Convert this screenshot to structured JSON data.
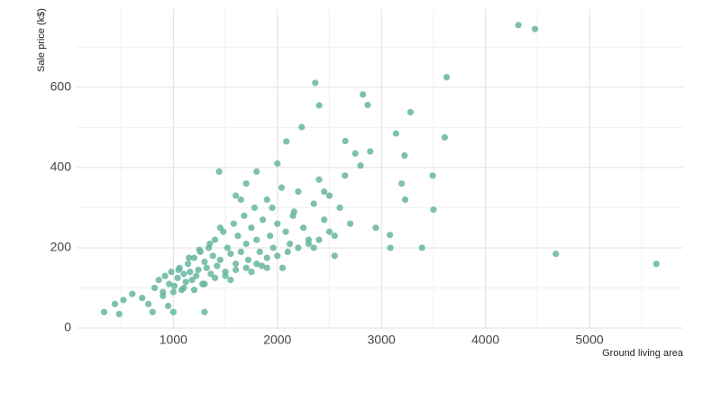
{
  "chart_data": {
    "type": "scatter",
    "xlabel": "Ground living area",
    "ylabel": "Sale price (k$)",
    "color": "#66b5a0",
    "xlim": [
      70,
      5900
    ],
    "ylim": [
      0,
      795
    ],
    "xticks": [
      1000,
      2000,
      3000,
      4000,
      5000
    ],
    "yticks": [
      0,
      200,
      400,
      600
    ],
    "xminor": [
      500,
      1500,
      2500,
      3500,
      4500,
      5500
    ],
    "yminor": [
      100,
      300,
      500,
      700
    ],
    "grid": true,
    "x": [
      4316,
      4476,
      4676,
      5642,
      3627,
      2364,
      2822,
      2402,
      2868,
      3279,
      2234,
      3140,
      3608,
      2653,
      2086,
      3222,
      3493,
      3194,
      3228,
      3500,
      3086,
      3390,
      3082,
      2946,
      2799,
      2892,
      2749,
      1440,
      334,
      480,
      438,
      520,
      605,
      700,
      760,
      800,
      1000,
      950,
      1300,
      820,
      860,
      900,
      920,
      960,
      980,
      1010,
      1040,
      1060,
      1080,
      1100,
      1120,
      1140,
      1160,
      1180,
      1200,
      1220,
      1240,
      1260,
      1280,
      1300,
      1320,
      1340,
      1360,
      1380,
      1400,
      1420,
      1450,
      1480,
      1500,
      1520,
      1550,
      1580,
      1600,
      1620,
      1650,
      1680,
      1700,
      1720,
      1750,
      1780,
      1800,
      1830,
      1860,
      1900,
      1930,
      1960,
      2000,
      2040,
      2080,
      2120,
      2160,
      2200,
      2250,
      2300,
      2350,
      2400,
      2450,
      2500,
      2550,
      2600,
      2650,
      2700,
      900,
      1000,
      1100,
      1200,
      1300,
      1400,
      1500,
      1600,
      1700,
      1800,
      1900,
      2000,
      2100,
      2200,
      2300,
      2400,
      2500,
      1050,
      1150,
      1250,
      1350,
      1450,
      1550,
      1650,
      1750,
      1850,
      1950,
      2050,
      2150,
      2350,
      2450,
      2550,
      1700,
      1800,
      1600,
      2000,
      1900
    ],
    "y": [
      755,
      745,
      185,
      160,
      625,
      611,
      582,
      555,
      556,
      538,
      501,
      485,
      475,
      466,
      465,
      430,
      380,
      360,
      320,
      295,
      200,
      200,
      232,
      250,
      405,
      440,
      435,
      390,
      40,
      35,
      60,
      70,
      85,
      75,
      60,
      40,
      40,
      55,
      40,
      100,
      120,
      90,
      130,
      110,
      140,
      105,
      125,
      150,
      95,
      135,
      115,
      160,
      140,
      120,
      175,
      130,
      145,
      190,
      110,
      165,
      150,
      200,
      135,
      180,
      220,
      155,
      170,
      240,
      140,
      200,
      185,
      260,
      160,
      230,
      190,
      280,
      210,
      170,
      250,
      300,
      220,
      190,
      270,
      320,
      230,
      200,
      260,
      350,
      240,
      210,
      290,
      340,
      250,
      220,
      310,
      370,
      270,
      330,
      230,
      300,
      380,
      260,
      80,
      90,
      100,
      95,
      110,
      125,
      130,
      145,
      150,
      160,
      175,
      180,
      190,
      200,
      210,
      220,
      240,
      145,
      175,
      195,
      210,
      250,
      120,
      320,
      140,
      155,
      300,
      150,
      280,
      200,
      340,
      180,
      360,
      390,
      330,
      410,
      150
    ]
  }
}
